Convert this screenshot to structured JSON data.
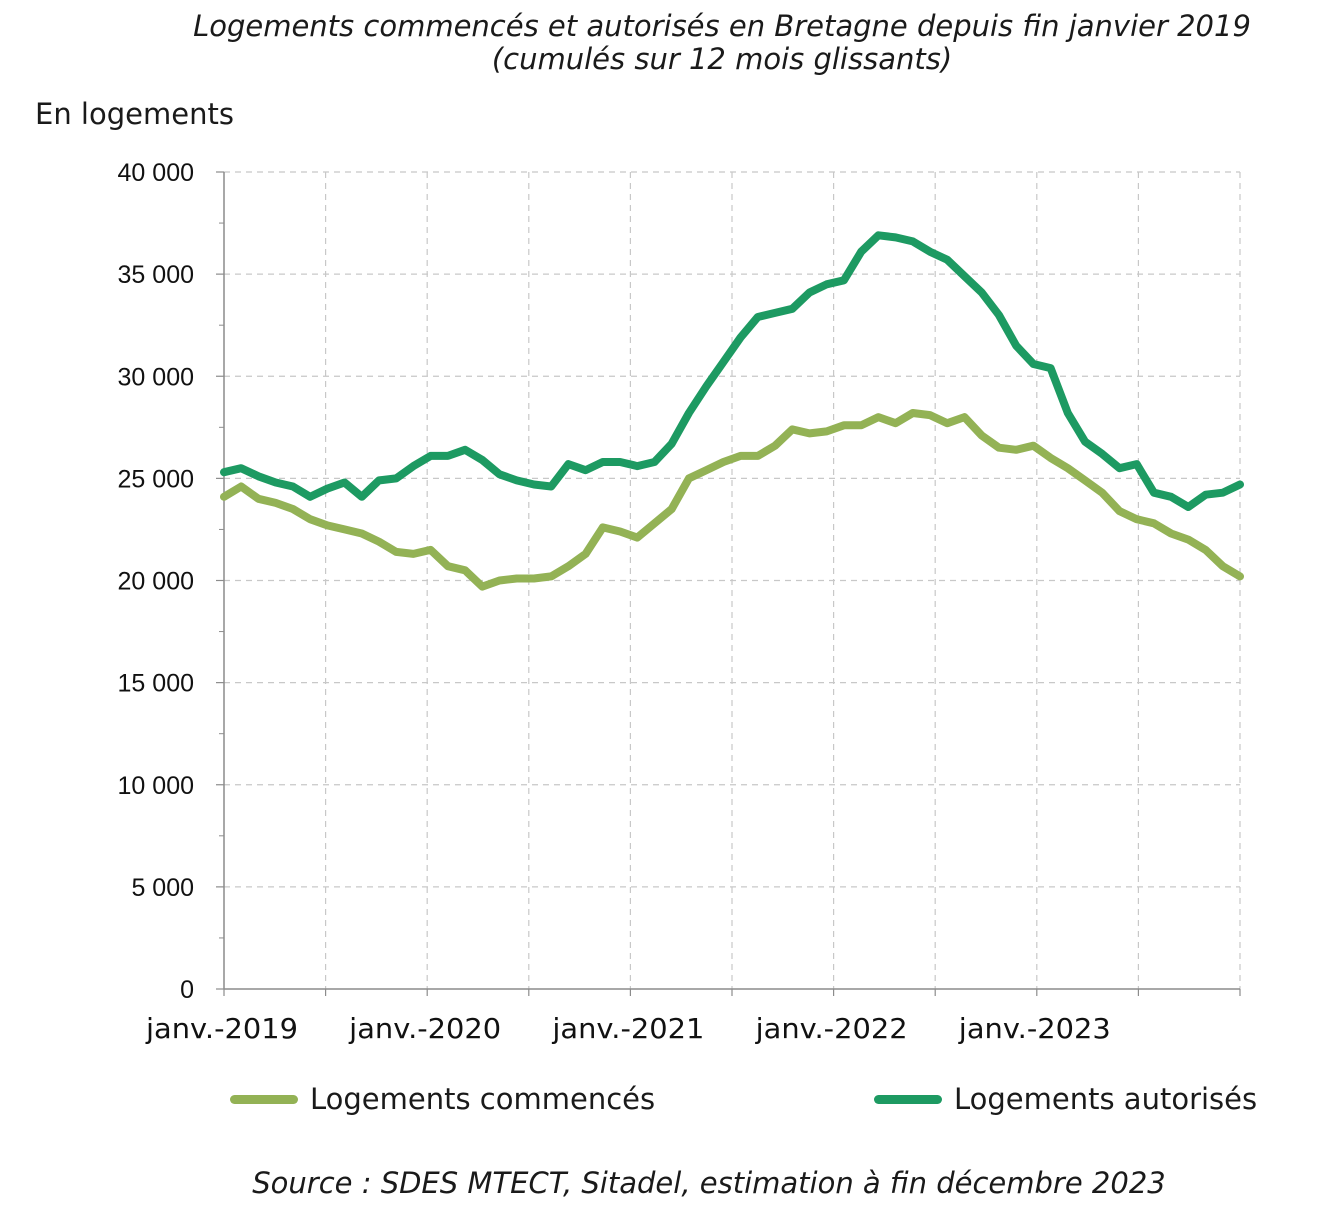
{
  "title_line1": "Logements commencés et autorisés en Bretagne depuis fin janvier 2019",
  "title_line2": "(cumulés sur 12 mois glissants)",
  "y_unit_label": "En logements",
  "source": "Source : SDES MTECT, Sitadel, estimation à fin décembre 2023",
  "colors": {
    "commences": "#93b255",
    "autorises": "#1d9a62",
    "grid": "#c8c8c8",
    "axis": "#8c8c8c"
  },
  "chart_data": {
    "type": "line",
    "title": "Logements commencés et autorisés en Bretagne depuis fin janvier 2019 (cumulés sur 12 mois glissants)",
    "ylabel": "En logements",
    "xlabel": "",
    "ylim": [
      0,
      40000
    ],
    "yticks": [
      0,
      5000,
      10000,
      15000,
      20000,
      25000,
      30000,
      35000,
      40000
    ],
    "ytick_labels": [
      "0",
      "5 000",
      "10 000",
      "15 000",
      "20 000",
      "25 000",
      "30 000",
      "35 000",
      "40 000"
    ],
    "x_start": "janv.-2019",
    "x_end": "déc.-2023",
    "xtick_labels": [
      "janv.-2019",
      "janv.-2020",
      "janv.-2021",
      "janv.-2022",
      "janv.-2023"
    ],
    "grid": true,
    "legend_position": "bottom",
    "series": [
      {
        "name": "Logements commencés",
        "values": [
          24100,
          24600,
          24000,
          23800,
          23500,
          23000,
          22700,
          22500,
          22300,
          21900,
          21400,
          21300,
          21500,
          20700,
          20500,
          19700,
          20000,
          20100,
          20100,
          20200,
          20700,
          21300,
          22600,
          22400,
          22100,
          22800,
          23500,
          25000,
          25400,
          25800,
          26100,
          26100,
          26600,
          27400,
          27200,
          27300,
          27600,
          27600,
          28000,
          27700,
          28200,
          28100,
          27700,
          28000,
          27100,
          26500,
          26400,
          26600,
          26000,
          25500,
          24900,
          24300,
          23400,
          23000,
          22800,
          22300,
          22000,
          21500,
          20700,
          20200
        ]
      },
      {
        "name": "Logements autorisés",
        "values": [
          25300,
          25500,
          25100,
          24800,
          24600,
          24100,
          24500,
          24800,
          24100,
          24900,
          25000,
          25600,
          26100,
          26100,
          26400,
          25900,
          25200,
          24900,
          24700,
          24600,
          25700,
          25400,
          25800,
          25800,
          25600,
          25800,
          26700,
          28200,
          29500,
          30700,
          31900,
          32900,
          33100,
          33300,
          34100,
          34500,
          34700,
          36100,
          36900,
          36800,
          36600,
          36100,
          35700,
          34900,
          34100,
          33000,
          31500,
          30600,
          30400,
          28200,
          26800,
          26200,
          25500,
          25700,
          24300,
          24100,
          23600,
          24200,
          24300,
          24700
        ]
      }
    ]
  }
}
